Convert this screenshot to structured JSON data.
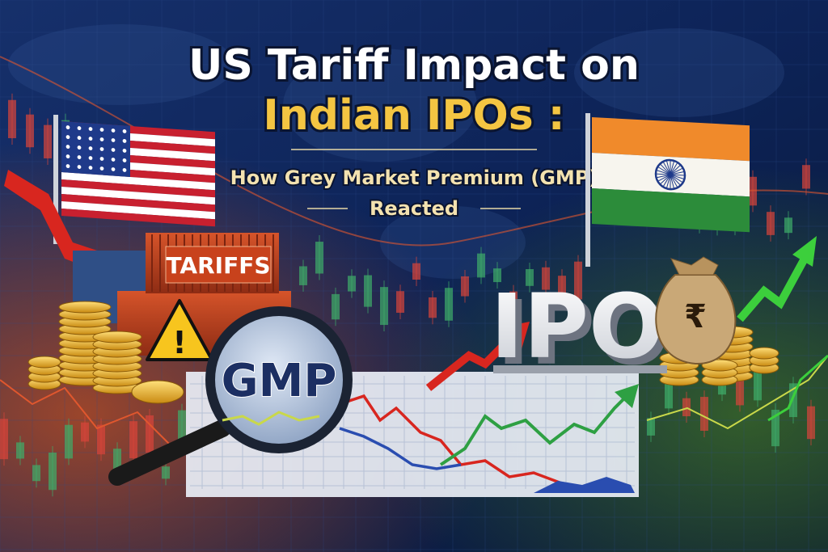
{
  "title": {
    "line1": "US Tariff Impact on",
    "line2": "Indian IPOs :"
  },
  "subtitle": {
    "line1": "How Grey Market Premium (GMP)",
    "line2": "Reacted"
  },
  "labels": {
    "tariffs": "TARIFFS",
    "gmp": "GMP",
    "ipo": "IPO",
    "rupee": "₹",
    "warning": "!"
  }
}
